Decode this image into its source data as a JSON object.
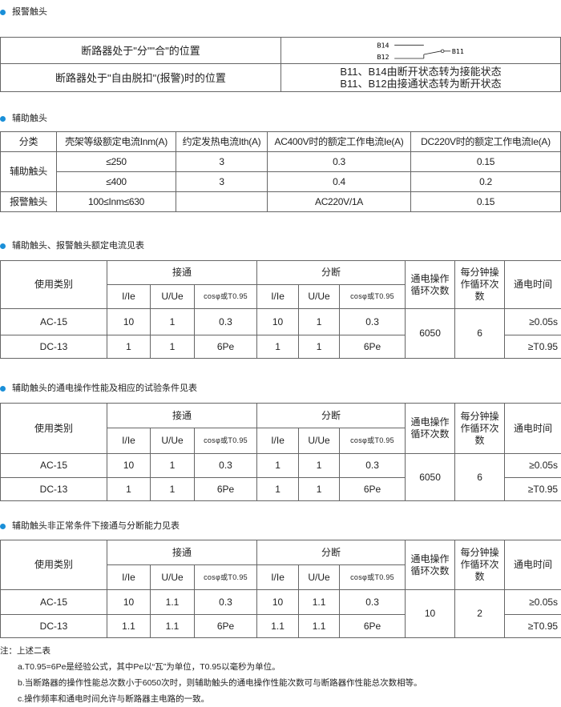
{
  "accent_color": "#1a8fd8",
  "alarm": {
    "heading": "报警触头",
    "rows": [
      {
        "label": "断路器处于\"分\"\"合\"的位置",
        "diagram_labels": {
          "b14": "B14",
          "b12": "B12",
          "b11": "B11"
        }
      },
      {
        "label": "断路器处于\"自由脱扣\"(报警)时的位置",
        "lines": [
          "B11、B14由断开状态转为接能状态",
          "B11、B12由接通状态转为断开状态"
        ]
      }
    ]
  },
  "aux": {
    "heading": "辅助触头",
    "headers": [
      "分类",
      "壳架等级额定电流Inm(A)",
      "约定发热电流Ith(A)",
      "AC400V时的额定工作电流Ie(A)",
      "DC220V时的额定工作电流Ie(A)"
    ],
    "group1": "辅助触头",
    "rows": [
      [
        "≤250",
        "3",
        "0.3",
        "0.15"
      ],
      [
        "≤400",
        "3",
        "0.4",
        "0.2"
      ]
    ],
    "group2": "报警触头",
    "alarm_row": [
      "100≤Inm≤630",
      "",
      "AC220V/1A",
      "0.15"
    ]
  },
  "tables": [
    {
      "heading": "辅助触头、报警触头额定电流见表",
      "h_category": "使用类别",
      "h_make": "接通",
      "h_break": "分断",
      "h_cycles": "通电操作循环次数",
      "h_per_min": "每分钟操作循环次数",
      "h_time": "通电时间",
      "sub": [
        "I/Ie",
        "U/Ue",
        "cosφ或T0.95",
        "I/Ie",
        "U/Ue",
        "cosφ或T0.95"
      ],
      "rows": [
        {
          "cat": "AC-15",
          "vals": [
            "10",
            "1",
            "0.3",
            "10",
            "1",
            "0.3"
          ],
          "time": "≥0.05s"
        },
        {
          "cat": "DC-13",
          "vals": [
            "1",
            "1",
            "6Pe",
            "1",
            "1",
            "6Pe"
          ],
          "time": "≥T0.95"
        }
      ],
      "cycles": "6050",
      "per_min": "6"
    },
    {
      "heading": "辅助触头的通电操作性能及相应的试验条件见表",
      "h_category": "使用类别",
      "h_make": "接通",
      "h_break": "分断",
      "h_cycles": "通电操作循环次数",
      "h_per_min": "每分钟操作循环次数",
      "h_time": "通电时间",
      "sub": [
        "I/Ie",
        "U/Ue",
        "cosφ或T0.95",
        "I/Ie",
        "U/Ue",
        "cosφ或T0.95"
      ],
      "rows": [
        {
          "cat": "AC-15",
          "vals": [
            "10",
            "1",
            "0.3",
            "1",
            "1",
            "0.3"
          ],
          "time": "≥0.05s"
        },
        {
          "cat": "DC-13",
          "vals": [
            "1",
            "1",
            "6Pe",
            "1",
            "1",
            "6Pe"
          ],
          "time": "≥T0.95"
        }
      ],
      "cycles": "6050",
      "per_min": "6"
    },
    {
      "heading": "辅助触头非正常条件下接通与分断能力见表",
      "h_category": "使用类别",
      "h_make": "接通",
      "h_break": "分断",
      "h_cycles": "通电操作循环次数",
      "h_per_min": "每分钟操作循环次数",
      "h_time": "通电时间",
      "sub": [
        "I/Ie",
        "U/Ue",
        "cosφ或T0.95",
        "I/Ie",
        "U/Ue",
        "cosφ或T0.95"
      ],
      "rows": [
        {
          "cat": "AC-15",
          "vals": [
            "10",
            "1.1",
            "0.3",
            "10",
            "1.1",
            "0.3"
          ],
          "time": "≥0.05s"
        },
        {
          "cat": "DC-13",
          "vals": [
            "1.1",
            "1.1",
            "6Pe",
            "1.1",
            "1.1",
            "6Pe"
          ],
          "time": "≥T0.95"
        }
      ],
      "cycles": "10",
      "per_min": "2"
    }
  ],
  "notes": {
    "title": "注：上述二表",
    "items": [
      "a.T0.95=6Pe是经验公式，其中Pe以“瓦”为单位，T0.95以毫秒为单位。",
      "b.当断路器的操作性能总次数小于6050次时，则辅助触头的通电操作性能次数可与断路器作性能总次数相等。",
      "c.操作频率和通电时间允许与断路器主电路的一致。"
    ]
  }
}
